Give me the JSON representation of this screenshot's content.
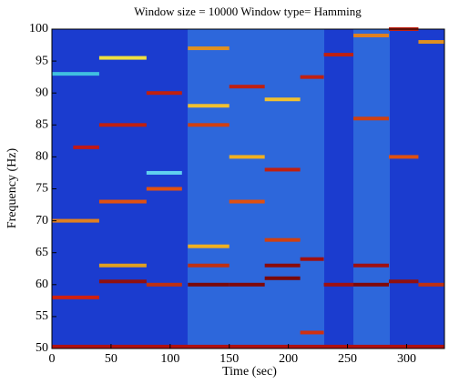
{
  "chart_data": {
    "type": "spectrogram",
    "title": "Window size = 10000 Window type= Hamming",
    "xlabel": "Time (sec)",
    "ylabel": "Frequency (Hz)",
    "xlim": [
      0,
      332
    ],
    "ylim": [
      50,
      100
    ],
    "xticks": [
      0,
      50,
      100,
      150,
      200,
      250,
      300
    ],
    "yticks": [
      50,
      55,
      60,
      65,
      70,
      75,
      80,
      85,
      90,
      95,
      100
    ],
    "background": "#1b3ccf",
    "tones": [
      {
        "x": [
          0,
          332
        ],
        "y": 50.3,
        "color": "#b01010"
      },
      {
        "x": [
          0,
          40
        ],
        "y": 58,
        "color": "#d02010"
      },
      {
        "x": [
          0,
          40
        ],
        "y": 70,
        "color": "#e08020"
      },
      {
        "x": [
          18,
          40
        ],
        "y": 81.5,
        "color": "#c01818"
      },
      {
        "x": [
          0,
          40
        ],
        "y": 93,
        "color": "#40c0e0"
      },
      {
        "x": [
          40,
          80
        ],
        "y": 60.5,
        "color": "#901010"
      },
      {
        "x": [
          40,
          80
        ],
        "y": 63,
        "color": "#e0a020"
      },
      {
        "x": [
          40,
          80
        ],
        "y": 73,
        "color": "#e05010"
      },
      {
        "x": [
          40,
          80
        ],
        "y": 85,
        "color": "#c02010"
      },
      {
        "x": [
          40,
          80
        ],
        "y": 95.5,
        "color": "#f0e040"
      },
      {
        "x": [
          80,
          110
        ],
        "y": 60,
        "color": "#c03010"
      },
      {
        "x": [
          80,
          110
        ],
        "y": 75,
        "color": "#e05010"
      },
      {
        "x": [
          80,
          110
        ],
        "y": 77.5,
        "color": "#60d0f0"
      },
      {
        "x": [
          80,
          110
        ],
        "y": 90,
        "color": "#c02010"
      },
      {
        "x": [
          115,
          150
        ],
        "y": 60,
        "color": "#7a0808"
      },
      {
        "x": [
          115,
          150
        ],
        "y": 63,
        "color": "#c03010"
      },
      {
        "x": [
          115,
          150
        ],
        "y": 66,
        "color": "#f0b020"
      },
      {
        "x": [
          115,
          150
        ],
        "y": 85,
        "color": "#d04010"
      },
      {
        "x": [
          115,
          150
        ],
        "y": 88,
        "color": "#f0c030"
      },
      {
        "x": [
          115,
          150
        ],
        "y": 97,
        "color": "#e09020"
      },
      {
        "x": [
          150,
          180
        ],
        "y": 60,
        "color": "#800808"
      },
      {
        "x": [
          150,
          180
        ],
        "y": 73,
        "color": "#e05010"
      },
      {
        "x": [
          150,
          180
        ],
        "y": 80,
        "color": "#f0b020"
      },
      {
        "x": [
          150,
          180
        ],
        "y": 91,
        "color": "#c02010"
      },
      {
        "x": [
          180,
          210
        ],
        "y": 61,
        "color": "#7a0808"
      },
      {
        "x": [
          180,
          210
        ],
        "y": 63,
        "color": "#8a0a0a"
      },
      {
        "x": [
          180,
          210
        ],
        "y": 67,
        "color": "#d04010"
      },
      {
        "x": [
          180,
          210
        ],
        "y": 78,
        "color": "#c02010"
      },
      {
        "x": [
          180,
          210
        ],
        "y": 89,
        "color": "#f0c030"
      },
      {
        "x": [
          210,
          230
        ],
        "y": 52.5,
        "color": "#d03010"
      },
      {
        "x": [
          210,
          230
        ],
        "y": 64,
        "color": "#a01010"
      },
      {
        "x": [
          210,
          230
        ],
        "y": 92.5,
        "color": "#c02010"
      },
      {
        "x": [
          230,
          255
        ],
        "y": 60,
        "color": "#a01010"
      },
      {
        "x": [
          230,
          255
        ],
        "y": 96,
        "color": "#c02010"
      },
      {
        "x": [
          255,
          285
        ],
        "y": 60,
        "color": "#800808"
      },
      {
        "x": [
          255,
          285
        ],
        "y": 63,
        "color": "#a01010"
      },
      {
        "x": [
          255,
          285
        ],
        "y": 86,
        "color": "#d04010"
      },
      {
        "x": [
          255,
          285
        ],
        "y": 99,
        "color": "#e08020"
      },
      {
        "x": [
          285,
          310
        ],
        "y": 60.5,
        "color": "#901010"
      },
      {
        "x": [
          285,
          310
        ],
        "y": 80,
        "color": "#e05010"
      },
      {
        "x": [
          285,
          310
        ],
        "y": 100,
        "color": "#c02010"
      },
      {
        "x": [
          310,
          332
        ],
        "y": 60,
        "color": "#c03010"
      },
      {
        "x": [
          310,
          332
        ],
        "y": 98,
        "color": "#e09020"
      }
    ]
  }
}
